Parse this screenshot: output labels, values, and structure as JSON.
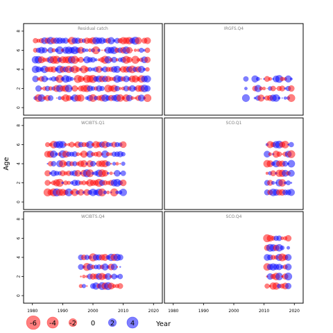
{
  "chart_data": {
    "type": "scatter",
    "xlabel": "Year",
    "ylabel": "Age",
    "xlim": [
      1978,
      2022
    ],
    "ylim": [
      -0.5,
      8.5
    ],
    "x_ticks": [
      1980,
      1990,
      2000,
      2010,
      2020
    ],
    "y_ticks": [
      0,
      2,
      4,
      6,
      8
    ],
    "colors": {
      "negative": "#ff0000",
      "positive": "#0000ff"
    },
    "legend": {
      "placement": "bottom-left",
      "values": [
        -6,
        -4,
        -2,
        0,
        2,
        4
      ],
      "labels": [
        "-6",
        "-4",
        "-2",
        "0",
        "2",
        "4"
      ]
    },
    "panels": [
      {
        "title": "Residual catch",
        "ages": [
          1,
          2,
          3,
          4,
          5,
          6,
          7
        ],
        "year_start": 1981,
        "year_end": 2018
      },
      {
        "title": "IRGFS.Q4",
        "ages": [
          1,
          2,
          3
        ],
        "year_start": 2004,
        "year_end": 2019,
        "skip_years": [
          2005,
          2006
        ]
      },
      {
        "title": "WCIBTS.Q1",
        "ages": [
          1,
          2,
          3,
          4,
          5,
          6
        ],
        "year_start": 1985,
        "year_end": 2010
      },
      {
        "title": "SCO.Q1",
        "ages": [
          1,
          2,
          3,
          4,
          5,
          6
        ],
        "year_start": 2011,
        "year_end": 2019
      },
      {
        "title": "WCIBTS.Q4",
        "ages": [
          1,
          2,
          3,
          4
        ],
        "year_start": 1996,
        "year_end": 2009
      },
      {
        "title": "SCO.Q4",
        "ages": [
          1,
          2,
          3,
          4,
          5,
          6
        ],
        "year_start": 2011,
        "year_end": 2018
      }
    ]
  }
}
